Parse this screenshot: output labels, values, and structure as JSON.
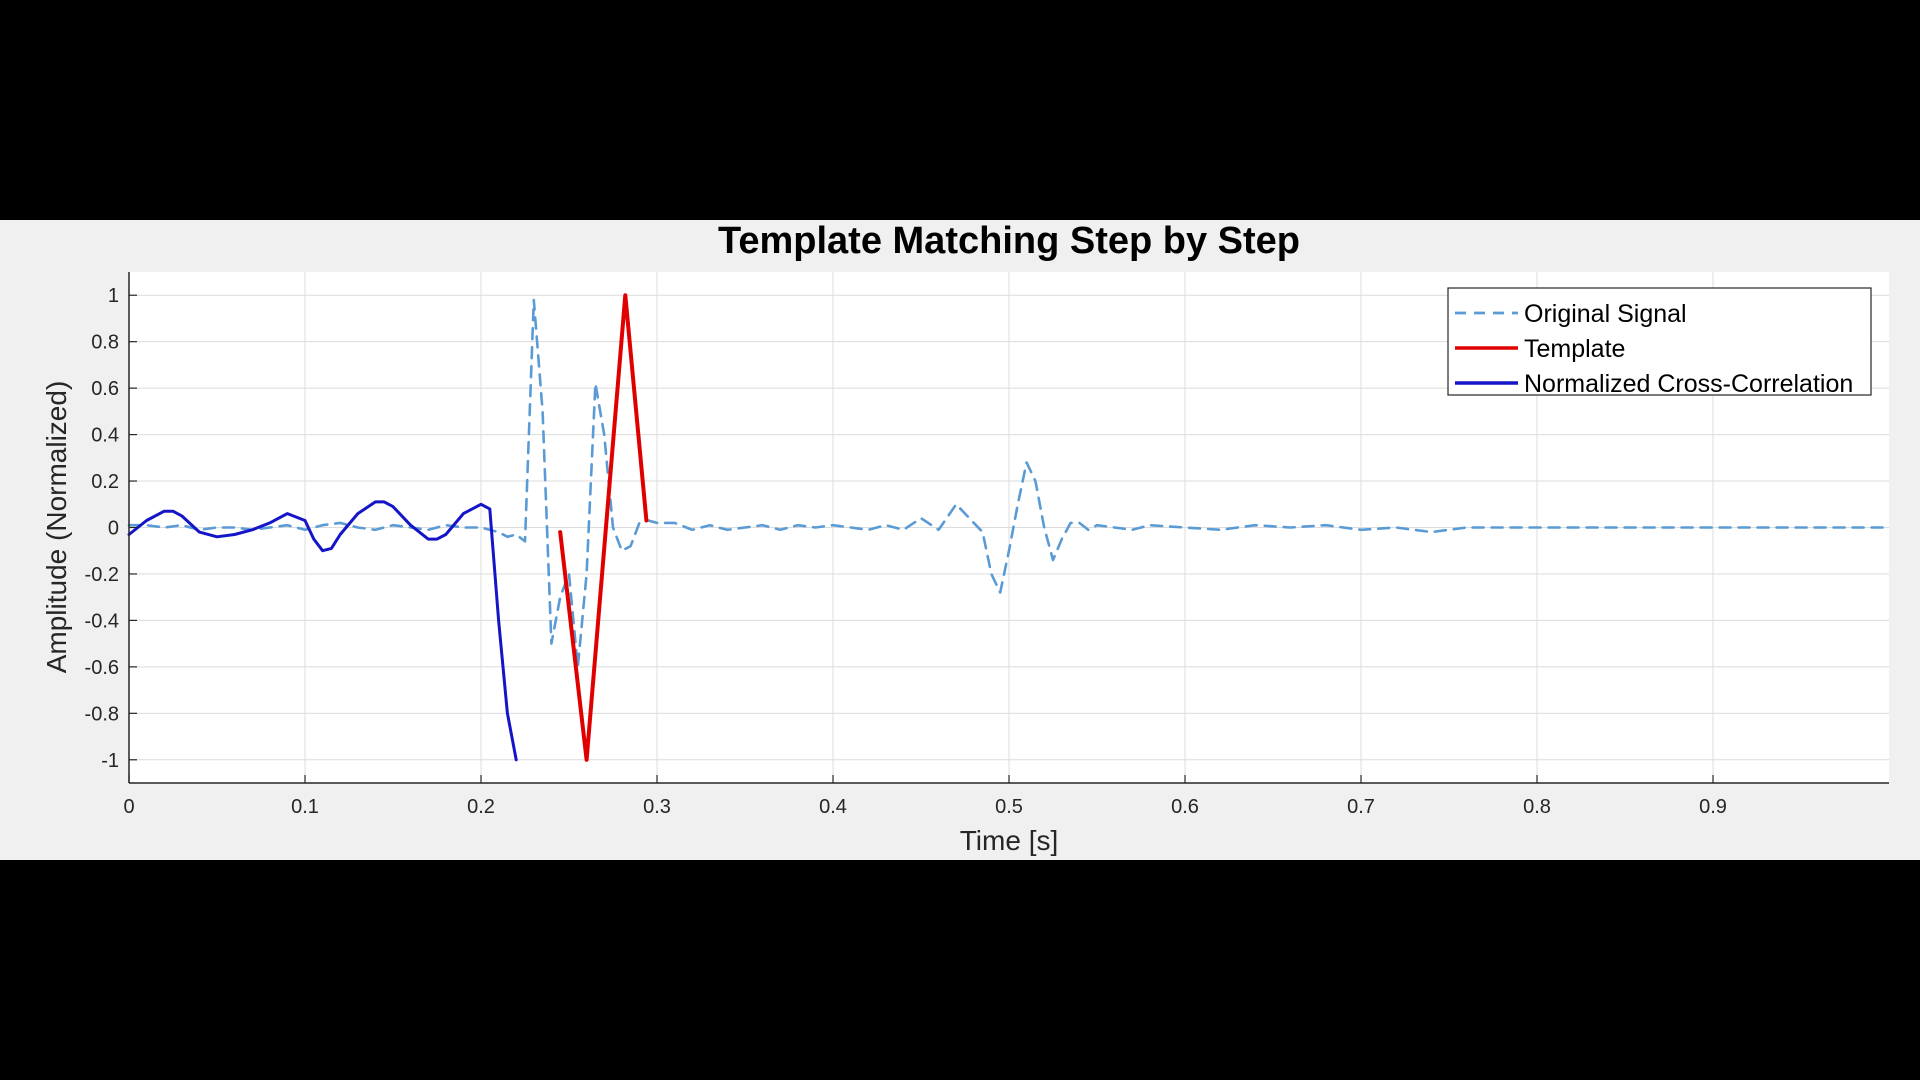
{
  "chart_data": {
    "type": "line",
    "title": "Template Matching Step by Step",
    "xlabel": "Time [s]",
    "ylabel": "Amplitude (Normalized)",
    "xlim": [
      0,
      1
    ],
    "ylim": [
      -1.1,
      1.1
    ],
    "x_ticks": [
      0,
      0.1,
      0.2,
      0.3,
      0.4,
      0.5,
      0.6,
      0.7,
      0.8,
      0.9
    ],
    "x_tick_labels": [
      "0",
      "0.1",
      "0.2",
      "0.3",
      "0.4",
      "0.5",
      "0.6",
      "0.7",
      "0.8",
      "0.9"
    ],
    "y_ticks": [
      1,
      0.8,
      0.6,
      0.4,
      0.2,
      0,
      -0.2,
      -0.4,
      -0.6,
      -0.8,
      -1
    ],
    "y_tick_labels": [
      "1",
      "0.8",
      "0.6",
      "0.4",
      "0.2",
      "0",
      "-0.2",
      "-0.4",
      "-0.6",
      "-0.8",
      "-1"
    ],
    "grid": true,
    "legend_position": "top-right",
    "series": [
      {
        "name": "Original Signal",
        "color": "#5b9bd5",
        "style": "dashed",
        "x": [
          0,
          0.01,
          0.02,
          0.03,
          0.04,
          0.05,
          0.06,
          0.07,
          0.08,
          0.09,
          0.1,
          0.11,
          0.12,
          0.13,
          0.14,
          0.15,
          0.16,
          0.17,
          0.18,
          0.19,
          0.2,
          0.21,
          0.215,
          0.22,
          0.225,
          0.23,
          0.235,
          0.24,
          0.245,
          0.25,
          0.255,
          0.26,
          0.265,
          0.27,
          0.275,
          0.28,
          0.285,
          0.29,
          0.295,
          0.3,
          0.31,
          0.32,
          0.33,
          0.34,
          0.35,
          0.36,
          0.37,
          0.38,
          0.39,
          0.4,
          0.41,
          0.42,
          0.43,
          0.44,
          0.45,
          0.46,
          0.47,
          0.48,
          0.485,
          0.49,
          0.495,
          0.5,
          0.505,
          0.51,
          0.515,
          0.52,
          0.525,
          0.53,
          0.535,
          0.54,
          0.545,
          0.55,
          0.56,
          0.57,
          0.58,
          0.6,
          0.62,
          0.64,
          0.66,
          0.68,
          0.7,
          0.72,
          0.74,
          0.76,
          0.78,
          0.8,
          0.85,
          0.9,
          0.95,
          1.0
        ],
        "y": [
          0.01,
          0.01,
          0,
          0.01,
          -0.01,
          0,
          0,
          -0.01,
          0,
          0.01,
          -0.01,
          0.01,
          0.02,
          0,
          -0.01,
          0.01,
          0,
          -0.01,
          0.01,
          0,
          0,
          -0.02,
          -0.04,
          -0.03,
          -0.06,
          0.98,
          0.5,
          -0.5,
          -0.3,
          -0.2,
          -0.6,
          -0.2,
          0.62,
          0.4,
          0,
          -0.1,
          -0.08,
          0.02,
          0.03,
          0.02,
          0.02,
          -0.01,
          0.01,
          -0.01,
          0,
          0.01,
          -0.01,
          0.01,
          0,
          0.01,
          0,
          -0.01,
          0.01,
          -0.01,
          0.04,
          -0.01,
          0.1,
          0.02,
          -0.02,
          -0.2,
          -0.28,
          -0.1,
          0.1,
          0.28,
          0.2,
          0,
          -0.14,
          -0.05,
          0.02,
          0.02,
          -0.01,
          0.01,
          0,
          -0.01,
          0.01,
          0,
          -0.01,
          0.01,
          0,
          0.01,
          -0.01,
          0,
          -0.02,
          0,
          0,
          0,
          0,
          0,
          0,
          0
        ]
      },
      {
        "name": "Template",
        "color": "#e00000",
        "style": "solid",
        "x": [
          0.245,
          0.26,
          0.282,
          0.294
        ],
        "y": [
          -0.02,
          -1,
          1,
          0.03
        ]
      },
      {
        "name": "Normalized Cross-Correlation",
        "color": "#1515c8",
        "style": "solid",
        "x": [
          0,
          0.01,
          0.02,
          0.025,
          0.03,
          0.04,
          0.05,
          0.06,
          0.07,
          0.08,
          0.09,
          0.1,
          0.105,
          0.11,
          0.115,
          0.12,
          0.13,
          0.14,
          0.145,
          0.15,
          0.16,
          0.17,
          0.175,
          0.18,
          0.19,
          0.2,
          0.205,
          0.21,
          0.215,
          0.22
        ],
        "y": [
          -0.03,
          0.03,
          0.07,
          0.07,
          0.05,
          -0.02,
          -0.04,
          -0.03,
          -0.01,
          0.02,
          0.06,
          0.03,
          -0.05,
          -0.1,
          -0.09,
          -0.03,
          0.06,
          0.11,
          0.11,
          0.09,
          0.01,
          -0.05,
          -0.05,
          -0.03,
          0.06,
          0.1,
          0.08,
          -0.4,
          -0.8,
          -1
        ]
      }
    ]
  }
}
